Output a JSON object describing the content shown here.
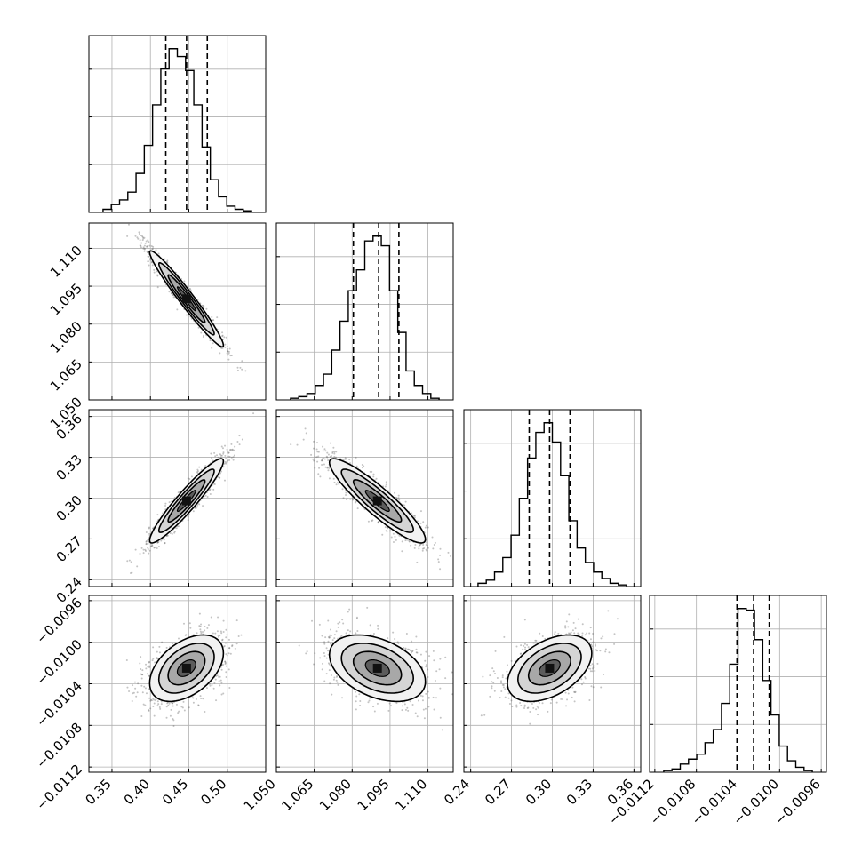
{
  "chart_data": {
    "type": "corner",
    "grid": true,
    "parameters": [
      {
        "index": 0,
        "range": [
          0.32,
          0.55
        ],
        "ticks": [
          "0.35",
          "0.40",
          "0.45",
          "0.50"
        ],
        "quantiles": [
          0.42,
          0.447,
          0.474
        ]
      },
      {
        "index": 1,
        "range": [
          1.05,
          1.12
        ],
        "ticks": [
          "1.050",
          "1.065",
          "1.080",
          "1.095",
          "1.110"
        ],
        "quantiles": [
          1.0805,
          1.0905,
          1.0985
        ]
      },
      {
        "index": 2,
        "range": [
          0.235,
          0.365
        ],
        "ticks": [
          "0.24",
          "0.27",
          "0.30",
          "0.33",
          "0.36"
        ],
        "quantiles": [
          0.283,
          0.298,
          0.313
        ]
      },
      {
        "index": 3,
        "range": [
          -0.01125,
          -0.00955
        ],
        "ticks": [
          "−0.0112",
          "−0.0108",
          "−0.0104",
          "−0.0100",
          "−0.0096"
        ],
        "quantiles": [
          -0.01041,
          -0.01025,
          -0.0101
        ]
      }
    ],
    "histograms": [
      {
        "param": 0,
        "values": [
          0.2,
          0.5,
          0.8,
          1.3,
          2.5,
          4.3,
          6.9,
          9.2,
          10.5,
          10.0,
          9.1,
          6.9,
          4.2,
          2.1,
          1.0,
          0.4,
          0.2,
          0.1
        ]
      },
      {
        "param": 1,
        "values": [
          0.1,
          0.2,
          0.4,
          0.9,
          1.6,
          3.1,
          4.9,
          6.8,
          8.1,
          9.9,
          10.2,
          9.6,
          6.8,
          4.2,
          1.8,
          0.9,
          0.4,
          0.1
        ]
      },
      {
        "param": 2,
        "values": [
          0.2,
          0.4,
          0.9,
          1.8,
          3.2,
          5.5,
          8.0,
          9.6,
          10.2,
          9.0,
          6.9,
          4.1,
          2.4,
          1.5,
          0.9,
          0.5,
          0.2,
          0.1
        ]
      },
      {
        "param": 3,
        "values": [
          0.1,
          0.2,
          0.5,
          0.8,
          1.1,
          1.8,
          2.6,
          4.2,
          6.6,
          10.0,
          9.9,
          8.1,
          5.6,
          3.5,
          1.6,
          0.7,
          0.3,
          0.1
        ]
      }
    ],
    "joint": [
      {
        "x": 0,
        "y": 1,
        "mean": [
          0.447,
          1.09
        ],
        "sd": [
          0.024,
          0.0095
        ],
        "corr": -0.97
      },
      {
        "x": 0,
        "y": 2,
        "mean": [
          0.447,
          0.298
        ],
        "sd": [
          0.024,
          0.0155
        ],
        "corr": 0.94
      },
      {
        "x": 1,
        "y": 2,
        "mean": [
          1.09,
          0.298
        ],
        "sd": [
          0.0095,
          0.0155
        ],
        "corr": -0.91
      },
      {
        "x": 0,
        "y": 3,
        "mean": [
          0.447,
          -0.01025
        ],
        "sd": [
          0.024,
          0.00016
        ],
        "corr": 0.45
      },
      {
        "x": 1,
        "y": 3,
        "mean": [
          1.09,
          -0.01025
        ],
        "sd": [
          0.0095,
          0.00016
        ],
        "corr": -0.4
      },
      {
        "x": 2,
        "y": 3,
        "mean": [
          0.298,
          -0.01025
        ],
        "sd": [
          0.0155,
          0.00016
        ],
        "corr": 0.45
      }
    ]
  }
}
